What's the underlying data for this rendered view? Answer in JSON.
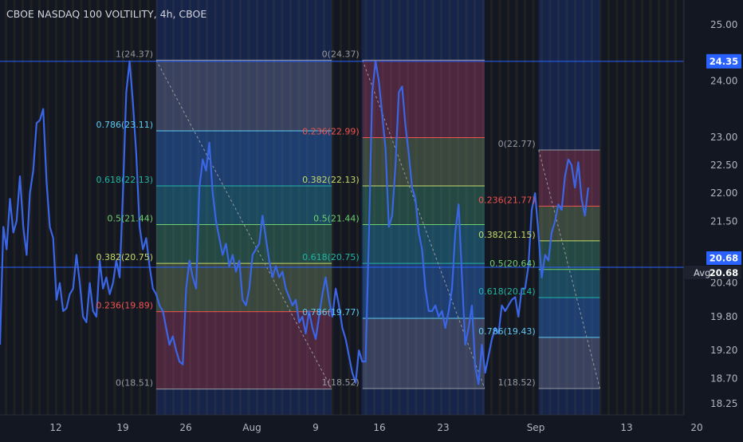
{
  "chart_data": {
    "type": "line",
    "title": "CBOE NASDAQ 100 VOLTILITY, 4h, CBOE",
    "ylim": [
      18.05,
      25.3
    ],
    "x_ticks": [
      "12",
      "19",
      "26",
      "Aug",
      "9",
      "16",
      "23",
      "Sep",
      "13",
      "20"
    ],
    "y_ticks": [
      "25.00",
      "24.00",
      "23.00",
      "22.50",
      "22.00",
      "21.50",
      "20.40",
      "19.80",
      "19.20",
      "18.70",
      "18.25"
    ],
    "series": [
      {
        "name": "",
        "color": "#3a66e6",
        "values": [
          19.3,
          21.4,
          21.0,
          21.9,
          21.3,
          21.5,
          22.3,
          21.4,
          20.9,
          22.0,
          22.4,
          23.25,
          23.3,
          23.5,
          22.2,
          21.4,
          21.2,
          20.1,
          20.4,
          19.9,
          19.95,
          20.2,
          20.3,
          20.9,
          20.4,
          19.8,
          19.7,
          20.4,
          19.9,
          19.8,
          20.8,
          20.3,
          20.5,
          20.2,
          20.4,
          20.8,
          20.5,
          22.0,
          23.8,
          24.35,
          23.6,
          22.7,
          21.4,
          21.0,
          21.2,
          20.7,
          20.3,
          20.2,
          20.0,
          19.9,
          19.6,
          19.3,
          19.45,
          19.2,
          19.0,
          18.95,
          20.3,
          20.8,
          20.5,
          20.3,
          22.1,
          22.6,
          22.4,
          22.9,
          22.0,
          21.5,
          21.2,
          20.9,
          21.1,
          20.7,
          20.9,
          20.6,
          20.8,
          20.1,
          20.0,
          20.3,
          20.9,
          21.0,
          21.1,
          21.6,
          21.2,
          20.8,
          20.5,
          20.7,
          20.5,
          20.6,
          20.3,
          20.15,
          20.0,
          20.1,
          19.7,
          19.8,
          19.5,
          19.9,
          19.6,
          19.4,
          19.8,
          20.2,
          20.5,
          20.1,
          19.8,
          20.3,
          20.0,
          19.6,
          19.4,
          19.1,
          18.8,
          18.62,
          19.2,
          19.0,
          19.0,
          21.2,
          23.8,
          24.35,
          24.0,
          23.4,
          22.8,
          21.4,
          21.6,
          22.5,
          23.8,
          23.9,
          23.2,
          22.7,
          22.1,
          21.9,
          21.3,
          21.0,
          20.3,
          19.9,
          19.9,
          20.0,
          19.8,
          19.9,
          19.6,
          19.9,
          20.3,
          21.3,
          21.8,
          20.5,
          19.3,
          19.6,
          20.0,
          18.9,
          18.6,
          19.3,
          18.8,
          19.1,
          19.4,
          19.6,
          19.5,
          20.0,
          19.9,
          20.0,
          20.1,
          20.15,
          19.8,
          20.3,
          20.3,
          20.7,
          21.7,
          22.0,
          21.3,
          20.5,
          20.9,
          20.8,
          21.3,
          21.5,
          21.8,
          21.7,
          22.3,
          22.6,
          22.5,
          22.1,
          22.55,
          21.9,
          21.6,
          22.1
        ]
      }
    ],
    "avg": {
      "label": "Avg",
      "value": 20.68
    },
    "price_line": 24.35,
    "fib_sets": [
      {
        "x_from": 0.2285,
        "x_to": 0.485,
        "high": 24.37,
        "low": 18.51,
        "label_side": "left",
        "direction": "down",
        "levels": [
          {
            "ratio": "1",
            "price": 24.37,
            "color": "#9598a1",
            "fill": "#787b86"
          },
          {
            "ratio": "0.786",
            "price": 23.11,
            "color": "#5ec8f2",
            "fill": "#2c6fb6"
          },
          {
            "ratio": "0.618",
            "price": 22.13,
            "color": "#21b5a3",
            "fill": "#21908b"
          },
          {
            "ratio": "0.5",
            "price": 21.44,
            "color": "#6fcf6f",
            "fill": "#3f8f3f"
          },
          {
            "ratio": "0.382",
            "price": 20.75,
            "color": "#c5d96a",
            "fill": "#7a8a2b"
          },
          {
            "ratio": "0.236",
            "price": 19.89,
            "color": "#ef5350",
            "fill": "#b23232"
          },
          {
            "ratio": "0",
            "price": 18.51,
            "color": "#9598a1",
            "fill": ""
          }
        ]
      },
      {
        "x_from": 0.53,
        "x_to": 0.7085,
        "high": 24.37,
        "low": 18.52,
        "label_side": "left",
        "direction": "down",
        "levels": [
          {
            "ratio": "0",
            "price": 24.37,
            "color": "#9598a1",
            "fill": "#b23232"
          },
          {
            "ratio": "0.236",
            "price": 22.99,
            "color": "#ef5350",
            "fill": "#7a8a2b"
          },
          {
            "ratio": "0.382",
            "price": 22.13,
            "color": "#c5d96a",
            "fill": "#3f8f3f"
          },
          {
            "ratio": "0.5",
            "price": 21.44,
            "color": "#6fcf6f",
            "fill": "#21908b"
          },
          {
            "ratio": "0.618",
            "price": 20.75,
            "color": "#21b5a3",
            "fill": "#2c6fb6"
          },
          {
            "ratio": "0.786",
            "price": 19.77,
            "color": "#5ec8f2",
            "fill": "#787b86"
          },
          {
            "ratio": "1",
            "price": 18.52,
            "color": "#9598a1",
            "fill": ""
          }
        ]
      },
      {
        "x_from": 0.7875,
        "x_to": 0.877,
        "high": 22.77,
        "low": 18.52,
        "label_side": "left",
        "direction": "down",
        "levels": [
          {
            "ratio": "0",
            "price": 22.77,
            "color": "#9598a1",
            "fill": "#b23232"
          },
          {
            "ratio": "0.236",
            "price": 21.77,
            "color": "#ef5350",
            "fill": "#7a8a2b"
          },
          {
            "ratio": "0.382",
            "price": 21.15,
            "color": "#c5d96a",
            "fill": "#3f8f3f"
          },
          {
            "ratio": "0.5",
            "price": 20.64,
            "color": "#6fcf6f",
            "fill": "#21908b"
          },
          {
            "ratio": "0.618",
            "price": 20.14,
            "color": "#21b5a3",
            "fill": "#2c6fb6"
          },
          {
            "ratio": "0.786",
            "price": 19.43,
            "color": "#5ec8f2",
            "fill": "#787b86"
          },
          {
            "ratio": "1",
            "price": 18.52,
            "color": "#9598a1",
            "fill": ""
          }
        ]
      }
    ],
    "grid": false,
    "legend": "none"
  },
  "colors": {
    "background": "#131722",
    "axis_text": "#b2b5be",
    "price_badge": "#2962ff",
    "avg_badge": "#2962ff",
    "highlight_band": "#2962ff",
    "stripe": "#9c7a1f"
  }
}
